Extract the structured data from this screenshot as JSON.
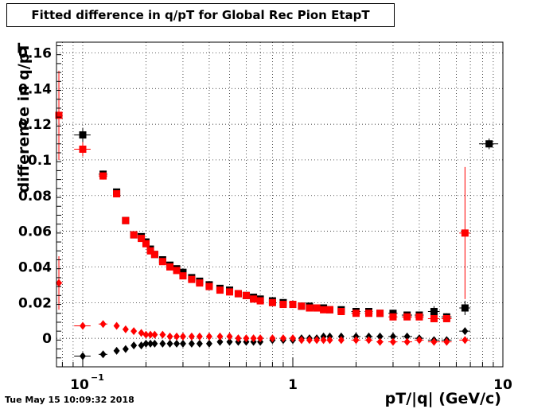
{
  "title": "Fitted difference in q/pT for Global Rec Pion EtapT",
  "timestamp": "Tue May 15 10:09:32 2018",
  "colors": {
    "series_black": "#000000",
    "series_red": "#ff0000",
    "grid": "#000000"
  },
  "chart_data": {
    "type": "scatter",
    "title": "Fitted difference in q/pT for Global Rec Pion EtapT",
    "xlabel": "pT/|q| (GeV/c)",
    "ylabel": "difference in q/pT",
    "xscale": "log",
    "xlim": [
      0.075,
      10
    ],
    "ylim": [
      -0.016,
      0.166
    ],
    "grid": true,
    "x_ticks": [
      {
        "value": 0.1,
        "label": "10",
        "exp": "−1"
      },
      {
        "value": 1,
        "label": "1"
      },
      {
        "value": 10,
        "label": "10"
      }
    ],
    "y_ticks": [
      {
        "value": 0,
        "label": "0"
      },
      {
        "value": 0.02,
        "label": "0.02"
      },
      {
        "value": 0.04,
        "label": "0.04"
      },
      {
        "value": 0.06,
        "label": "0.06"
      },
      {
        "value": 0.08,
        "label": "0.08"
      },
      {
        "value": 0.1,
        "label": "0.1"
      },
      {
        "value": 0.12,
        "label": "0.12"
      },
      {
        "value": 0.14,
        "label": "0.14"
      },
      {
        "value": 0.16,
        "label": "0.16"
      }
    ],
    "series": [
      {
        "color": "#000000",
        "marker": "square",
        "points": [
          [
            0.1,
            0.114,
            0.009,
            0.004
          ],
          [
            0.125,
            0.092,
            0.006,
            0.002
          ],
          [
            0.145,
            0.082,
            0.004,
            0.001
          ],
          [
            0.16,
            0.066,
            0.003,
            0.001
          ],
          [
            0.175,
            0.058,
            0.003,
            0.001
          ],
          [
            0.19,
            0.057,
            0.003,
            0.001
          ],
          [
            0.2,
            0.054,
            0.003,
            0.001
          ],
          [
            0.21,
            0.05,
            0.003,
            0.001
          ],
          [
            0.22,
            0.047,
            0.003,
            0.001
          ],
          [
            0.24,
            0.044,
            0.004,
            0.001
          ],
          [
            0.26,
            0.041,
            0.004,
            0.001
          ],
          [
            0.28,
            0.039,
            0.004,
            0.001
          ],
          [
            0.3,
            0.037,
            0.005,
            0.001
          ],
          [
            0.33,
            0.034,
            0.006,
            0.001
          ],
          [
            0.36,
            0.032,
            0.006,
            0.001
          ],
          [
            0.4,
            0.03,
            0.008,
            0.001
          ],
          [
            0.45,
            0.028,
            0.009,
            0.001
          ],
          [
            0.5,
            0.027,
            0.01,
            0.001
          ],
          [
            0.55,
            0.025,
            0.01,
            0.001
          ],
          [
            0.6,
            0.024,
            0.01,
            0.001
          ],
          [
            0.65,
            0.023,
            0.01,
            0.001
          ],
          [
            0.7,
            0.022,
            0.01,
            0.001
          ],
          [
            0.8,
            0.021,
            0.02,
            0.001
          ],
          [
            0.9,
            0.02,
            0.02,
            0.001
          ],
          [
            1.0,
            0.019,
            0.02,
            0.001
          ],
          [
            1.1,
            0.018,
            0.02,
            0.001
          ],
          [
            1.2,
            0.018,
            0.02,
            0.001
          ],
          [
            1.3,
            0.017,
            0.03,
            0.001
          ],
          [
            1.4,
            0.017,
            0.03,
            0.001
          ],
          [
            1.5,
            0.016,
            0.03,
            0.001
          ],
          [
            1.7,
            0.016,
            0.05,
            0.001
          ],
          [
            2.0,
            0.015,
            0.1,
            0.001
          ],
          [
            2.3,
            0.015,
            0.1,
            0.001
          ],
          [
            2.6,
            0.014,
            0.1,
            0.001
          ],
          [
            3.0,
            0.014,
            0.15,
            0.001
          ],
          [
            3.5,
            0.013,
            0.2,
            0.001
          ],
          [
            4.0,
            0.013,
            0.2,
            0.001
          ],
          [
            4.7,
            0.015,
            0.3,
            0.003
          ],
          [
            5.4,
            0.012,
            0.3,
            0.002
          ],
          [
            6.6,
            0.017,
            0.4,
            0.004
          ],
          [
            8.6,
            0.109,
            0.9,
            0.003
          ]
        ]
      },
      {
        "color": "#ff0000",
        "marker": "square",
        "points": [
          [
            0.077,
            0.125,
            0.003,
            0.025
          ],
          [
            0.1,
            0.106,
            0.009,
            0.004
          ],
          [
            0.125,
            0.091,
            0.006,
            0.002
          ],
          [
            0.145,
            0.081,
            0.004,
            0.002
          ],
          [
            0.16,
            0.066,
            0.003,
            0.001
          ],
          [
            0.175,
            0.058,
            0.003,
            0.001
          ],
          [
            0.19,
            0.056,
            0.003,
            0.001
          ],
          [
            0.2,
            0.053,
            0.003,
            0.001
          ],
          [
            0.21,
            0.049,
            0.003,
            0.001
          ],
          [
            0.22,
            0.047,
            0.003,
            0.001
          ],
          [
            0.24,
            0.043,
            0.004,
            0.001
          ],
          [
            0.26,
            0.04,
            0.004,
            0.001
          ],
          [
            0.28,
            0.038,
            0.004,
            0.001
          ],
          [
            0.3,
            0.035,
            0.005,
            0.001
          ],
          [
            0.33,
            0.033,
            0.006,
            0.001
          ],
          [
            0.36,
            0.031,
            0.006,
            0.001
          ],
          [
            0.4,
            0.029,
            0.008,
            0.001
          ],
          [
            0.45,
            0.027,
            0.009,
            0.001
          ],
          [
            0.5,
            0.026,
            0.01,
            0.001
          ],
          [
            0.55,
            0.025,
            0.01,
            0.001
          ],
          [
            0.6,
            0.024,
            0.01,
            0.001
          ],
          [
            0.65,
            0.022,
            0.01,
            0.001
          ],
          [
            0.7,
            0.021,
            0.01,
            0.001
          ],
          [
            0.8,
            0.02,
            0.02,
            0.001
          ],
          [
            0.9,
            0.019,
            0.02,
            0.001
          ],
          [
            1.0,
            0.019,
            0.02,
            0.001
          ],
          [
            1.1,
            0.018,
            0.02,
            0.001
          ],
          [
            1.2,
            0.017,
            0.02,
            0.001
          ],
          [
            1.3,
            0.017,
            0.03,
            0.001
          ],
          [
            1.4,
            0.016,
            0.03,
            0.001
          ],
          [
            1.5,
            0.016,
            0.03,
            0.001
          ],
          [
            1.7,
            0.015,
            0.05,
            0.001
          ],
          [
            2.0,
            0.014,
            0.1,
            0.001
          ],
          [
            2.3,
            0.014,
            0.1,
            0.001
          ],
          [
            2.6,
            0.014,
            0.1,
            0.001
          ],
          [
            3.0,
            0.012,
            0.15,
            0.001
          ],
          [
            3.5,
            0.012,
            0.2,
            0.001
          ],
          [
            4.0,
            0.012,
            0.2,
            0.001
          ],
          [
            4.7,
            0.011,
            0.3,
            0.002
          ],
          [
            5.4,
            0.011,
            0.3,
            0.002
          ],
          [
            6.6,
            0.059,
            0.4,
            0.037
          ]
        ]
      },
      {
        "color": "#000000",
        "marker": "diamond",
        "points": [
          [
            0.1,
            -0.01,
            0.009,
            0.001
          ],
          [
            0.125,
            -0.009,
            0.006,
            0.001
          ],
          [
            0.145,
            -0.007,
            0.004,
            0.001
          ],
          [
            0.16,
            -0.006,
            0.003,
            0.001
          ],
          [
            0.175,
            -0.004,
            0.003,
            0.001
          ],
          [
            0.19,
            -0.004,
            0.003,
            0.001
          ],
          [
            0.2,
            -0.003,
            0.003,
            0.001
          ],
          [
            0.21,
            -0.003,
            0.003,
            0.001
          ],
          [
            0.22,
            -0.003,
            0.003,
            0.001
          ],
          [
            0.24,
            -0.003,
            0.004,
            0.001
          ],
          [
            0.26,
            -0.003,
            0.004,
            0.001
          ],
          [
            0.28,
            -0.003,
            0.004,
            0.001
          ],
          [
            0.3,
            -0.003,
            0.005,
            0.001
          ],
          [
            0.33,
            -0.003,
            0.006,
            0.001
          ],
          [
            0.36,
            -0.003,
            0.006,
            0.001
          ],
          [
            0.4,
            -0.003,
            0.008,
            0.001
          ],
          [
            0.45,
            -0.002,
            0.009,
            0.001
          ],
          [
            0.5,
            -0.002,
            0.01,
            0.001
          ],
          [
            0.55,
            -0.002,
            0.01,
            0.001
          ],
          [
            0.6,
            -0.002,
            0.01,
            0.001
          ],
          [
            0.65,
            -0.002,
            0.01,
            0.001
          ],
          [
            0.7,
            -0.002,
            0.01,
            0.001
          ],
          [
            0.8,
            -0.001,
            0.02,
            0.001
          ],
          [
            0.9,
            -0.001,
            0.02,
            0.001
          ],
          [
            1.0,
            -0.001,
            0.02,
            0.001
          ],
          [
            1.1,
            0.0,
            0.02,
            0.001
          ],
          [
            1.2,
            0.0,
            0.02,
            0.001
          ],
          [
            1.3,
            0.0,
            0.03,
            0.001
          ],
          [
            1.4,
            0.001,
            0.03,
            0.001
          ],
          [
            1.5,
            0.001,
            0.03,
            0.001
          ],
          [
            1.7,
            0.001,
            0.05,
            0.001
          ],
          [
            2.0,
            0.001,
            0.1,
            0.001
          ],
          [
            2.3,
            0.001,
            0.1,
            0.001
          ],
          [
            2.6,
            0.001,
            0.1,
            0.001
          ],
          [
            3.0,
            0.001,
            0.15,
            0.001
          ],
          [
            3.5,
            0.001,
            0.2,
            0.001
          ],
          [
            4.0,
            0.0,
            0.2,
            0.001
          ],
          [
            4.7,
            -0.001,
            0.3,
            0.001
          ],
          [
            5.4,
            -0.001,
            0.3,
            0.001
          ],
          [
            6.6,
            0.004,
            0.4,
            0.002
          ]
        ]
      },
      {
        "color": "#ff0000",
        "marker": "diamond",
        "points": [
          [
            0.077,
            0.031,
            0.003,
            0.015
          ],
          [
            0.1,
            0.007,
            0.009,
            0.002
          ],
          [
            0.125,
            0.008,
            0.006,
            0.001
          ],
          [
            0.145,
            0.007,
            0.004,
            0.001
          ],
          [
            0.16,
            0.005,
            0.003,
            0.001
          ],
          [
            0.175,
            0.004,
            0.003,
            0.001
          ],
          [
            0.19,
            0.003,
            0.003,
            0.001
          ],
          [
            0.2,
            0.002,
            0.003,
            0.001
          ],
          [
            0.21,
            0.002,
            0.003,
            0.001
          ],
          [
            0.22,
            0.002,
            0.003,
            0.001
          ],
          [
            0.24,
            0.002,
            0.004,
            0.001
          ],
          [
            0.26,
            0.001,
            0.004,
            0.001
          ],
          [
            0.28,
            0.001,
            0.004,
            0.001
          ],
          [
            0.3,
            0.001,
            0.005,
            0.001
          ],
          [
            0.33,
            0.001,
            0.006,
            0.001
          ],
          [
            0.36,
            0.001,
            0.006,
            0.001
          ],
          [
            0.4,
            0.001,
            0.008,
            0.001
          ],
          [
            0.45,
            0.001,
            0.009,
            0.001
          ],
          [
            0.5,
            0.001,
            0.01,
            0.001
          ],
          [
            0.55,
            0.0,
            0.01,
            0.001
          ],
          [
            0.6,
            0.0,
            0.01,
            0.001
          ],
          [
            0.65,
            0.0,
            0.01,
            0.001
          ],
          [
            0.7,
            0.0,
            0.01,
            0.001
          ],
          [
            0.8,
            0.0,
            0.02,
            0.001
          ],
          [
            0.9,
            0.0,
            0.02,
            0.001
          ],
          [
            1.0,
            0.0,
            0.02,
            0.001
          ],
          [
            1.1,
            -0.001,
            0.02,
            0.001
          ],
          [
            1.2,
            -0.001,
            0.02,
            0.001
          ],
          [
            1.3,
            -0.001,
            0.03,
            0.001
          ],
          [
            1.4,
            -0.001,
            0.03,
            0.001
          ],
          [
            1.5,
            -0.001,
            0.03,
            0.001
          ],
          [
            1.7,
            -0.001,
            0.05,
            0.001
          ],
          [
            2.0,
            -0.001,
            0.1,
            0.001
          ],
          [
            2.3,
            -0.001,
            0.1,
            0.001
          ],
          [
            2.6,
            -0.002,
            0.1,
            0.001
          ],
          [
            3.0,
            -0.002,
            0.15,
            0.001
          ],
          [
            3.5,
            -0.002,
            0.2,
            0.001
          ],
          [
            4.0,
            -0.001,
            0.2,
            0.001
          ],
          [
            4.7,
            -0.002,
            0.3,
            0.001
          ],
          [
            5.4,
            -0.002,
            0.3,
            0.001
          ],
          [
            6.6,
            -0.001,
            0.4,
            0.001
          ]
        ]
      }
    ]
  }
}
